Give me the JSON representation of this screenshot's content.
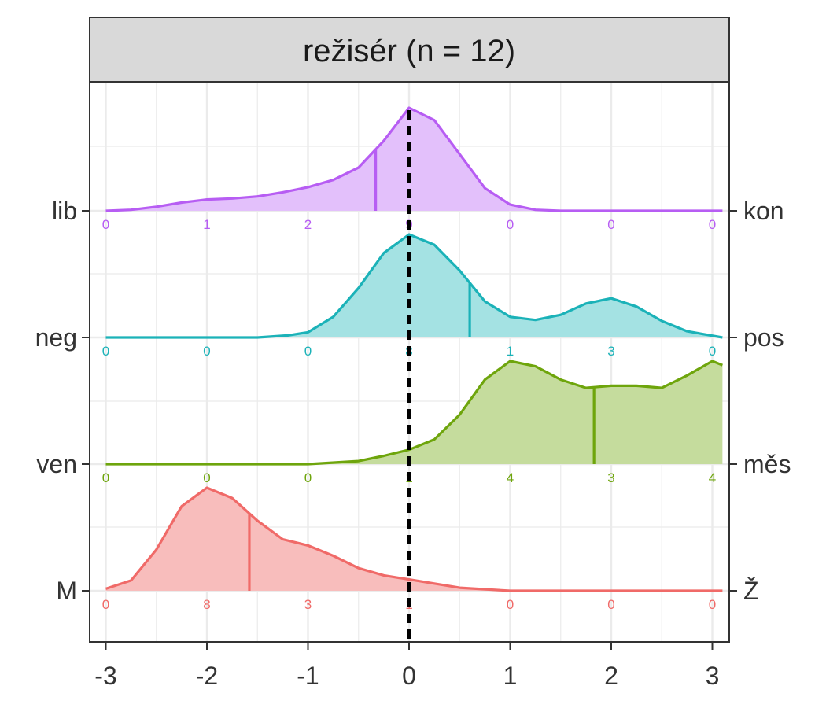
{
  "chart_data": {
    "type": "ridgeline-density",
    "title": "režisér (n = 12)",
    "xlim": [
      -3,
      3
    ],
    "x_ticks": [
      -3,
      -2,
      -1,
      0,
      1,
      2,
      3
    ],
    "x_tick_labels": [
      "-3",
      "-2",
      "-1",
      "0",
      "1",
      "2",
      "3"
    ],
    "reference_line": {
      "x": 0,
      "style": "dashed",
      "color": "#000000"
    },
    "count_positions": [
      -3,
      -2,
      -1,
      0,
      1,
      2,
      3
    ],
    "series": [
      {
        "left_label": "lib",
        "right_label": "kon",
        "color": "#B75DF3",
        "fill": "#E3C0FB",
        "mean": -0.33,
        "counts": [
          "0",
          "1",
          "2",
          "9",
          "0",
          "0",
          "0"
        ],
        "density": [
          [
            -3,
            0.0
          ],
          [
            -2.75,
            0.01
          ],
          [
            -2.5,
            0.04
          ],
          [
            -2.25,
            0.08
          ],
          [
            -2,
            0.11
          ],
          [
            -1.75,
            0.12
          ],
          [
            -1.5,
            0.14
          ],
          [
            -1.25,
            0.18
          ],
          [
            -1,
            0.23
          ],
          [
            -0.75,
            0.3
          ],
          [
            -0.5,
            0.42
          ],
          [
            -0.25,
            0.68
          ],
          [
            0,
            1.0
          ],
          [
            0.25,
            0.88
          ],
          [
            0.5,
            0.55
          ],
          [
            0.75,
            0.22
          ],
          [
            1,
            0.06
          ],
          [
            1.25,
            0.01
          ],
          [
            1.5,
            0.0
          ],
          [
            3.1,
            0.0
          ]
        ]
      },
      {
        "left_label": "neg",
        "right_label": "pos",
        "color": "#1BB2B8",
        "fill": "#A4E2E3",
        "mean": 0.6,
        "counts": [
          "0",
          "0",
          "0",
          "8",
          "1",
          "3",
          "0"
        ],
        "density": [
          [
            -3,
            0.0
          ],
          [
            -1.5,
            0.0
          ],
          [
            -1.2,
            0.02
          ],
          [
            -1,
            0.05
          ],
          [
            -0.75,
            0.2
          ],
          [
            -0.5,
            0.48
          ],
          [
            -0.25,
            0.82
          ],
          [
            0,
            1.0
          ],
          [
            0.25,
            0.9
          ],
          [
            0.5,
            0.65
          ],
          [
            0.75,
            0.35
          ],
          [
            1,
            0.2
          ],
          [
            1.25,
            0.17
          ],
          [
            1.5,
            0.22
          ],
          [
            1.75,
            0.33
          ],
          [
            2,
            0.38
          ],
          [
            2.25,
            0.3
          ],
          [
            2.5,
            0.16
          ],
          [
            2.75,
            0.06
          ],
          [
            3.1,
            0.0
          ]
        ]
      },
      {
        "left_label": "ven",
        "right_label": "měs",
        "color": "#6EA50C",
        "fill": "#C5DC9D",
        "mean": 1.83,
        "counts": [
          "0",
          "0",
          "0",
          "1",
          "4",
          "3",
          "4"
        ],
        "density": [
          [
            -3,
            0.0
          ],
          [
            -1,
            0.0
          ],
          [
            -0.5,
            0.03
          ],
          [
            -0.25,
            0.08
          ],
          [
            0,
            0.14
          ],
          [
            0.25,
            0.24
          ],
          [
            0.5,
            0.48
          ],
          [
            0.75,
            0.82
          ],
          [
            1,
            1.0
          ],
          [
            1.25,
            0.95
          ],
          [
            1.5,
            0.82
          ],
          [
            1.75,
            0.74
          ],
          [
            2,
            0.76
          ],
          [
            2.25,
            0.76
          ],
          [
            2.5,
            0.74
          ],
          [
            2.75,
            0.86
          ],
          [
            3,
            1.0
          ],
          [
            3.1,
            0.96
          ]
        ]
      },
      {
        "left_label": "M",
        "right_label": "Ž",
        "color": "#F06A68",
        "fill": "#F8BDBC",
        "mean": -1.58,
        "counts": [
          "0",
          "8",
          "3",
          "1",
          "0",
          "0",
          "0"
        ],
        "density": [
          [
            -3,
            0.02
          ],
          [
            -2.75,
            0.1
          ],
          [
            -2.5,
            0.4
          ],
          [
            -2.25,
            0.82
          ],
          [
            -2,
            1.0
          ],
          [
            -1.75,
            0.9
          ],
          [
            -1.5,
            0.68
          ],
          [
            -1.25,
            0.5
          ],
          [
            -1,
            0.44
          ],
          [
            -0.75,
            0.34
          ],
          [
            -0.5,
            0.22
          ],
          [
            -0.25,
            0.15
          ],
          [
            0,
            0.11
          ],
          [
            0.25,
            0.07
          ],
          [
            0.5,
            0.03
          ],
          [
            1,
            0.0
          ],
          [
            3.1,
            0.0
          ]
        ]
      }
    ]
  }
}
